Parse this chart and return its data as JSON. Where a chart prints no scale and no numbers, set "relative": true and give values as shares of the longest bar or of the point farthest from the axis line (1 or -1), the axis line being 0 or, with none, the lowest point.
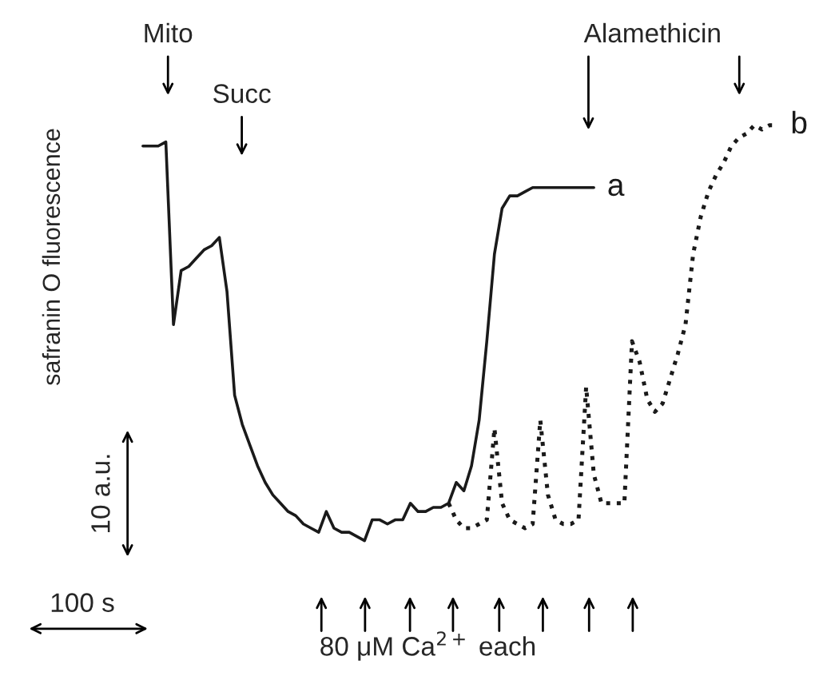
{
  "chart_data": {
    "type": "line",
    "relative": true,
    "ylabel": "safranin O fluorescence",
    "categories": [
      null,
      null,
      null,
      null,
      null,
      null,
      null,
      null,
      null,
      null,
      null,
      null,
      null,
      null,
      null,
      null,
      null,
      null,
      null,
      null,
      null,
      null,
      null,
      null,
      null,
      null,
      null,
      null,
      null,
      null,
      null,
      null,
      null,
      null,
      null,
      null,
      null,
      null,
      null,
      null,
      null,
      null,
      null,
      null,
      null,
      null,
      null,
      null,
      null,
      null,
      null,
      null,
      null,
      null,
      null,
      null,
      null,
      null,
      null,
      null,
      null,
      null,
      null,
      null,
      null,
      null,
      null,
      null,
      null,
      null,
      null,
      null,
      null,
      null,
      null,
      null,
      null,
      null,
      null,
      null,
      null,
      null,
      null,
      null
    ],
    "series": [
      {
        "name": "a",
        "color": "#1a1a1a",
        "line_style": "solid",
        "values": [
          0.95,
          0.95,
          0.95,
          0.96,
          0.52,
          0.65,
          0.66,
          0.68,
          0.7,
          0.71,
          0.73,
          0.6,
          0.35,
          0.28,
          0.23,
          0.18,
          0.14,
          0.11,
          0.09,
          0.07,
          0.06,
          0.04,
          0.03,
          0.02,
          0.07,
          0.03,
          0.02,
          0.02,
          0.01,
          0,
          0.05,
          0.05,
          0.04,
          0.05,
          0.05,
          0.09,
          0.07,
          0.07,
          0.08,
          0.08,
          0.09,
          0.14,
          0.12,
          0.18,
          0.29,
          0.48,
          0.69,
          0.8,
          0.83,
          0.83,
          0.84,
          0.85,
          0.85,
          0.85,
          0.85,
          0.85,
          0.85,
          0.85,
          0.85,
          0.85,
          null,
          null,
          null,
          null,
          null,
          null,
          null,
          null,
          null,
          null,
          null,
          null,
          null,
          null,
          null,
          null,
          null,
          null,
          null,
          null,
          null,
          null,
          null,
          null
        ]
      },
      {
        "name": "b",
        "color": "#1a1a1a",
        "line_style": "dotted",
        "values": [
          null,
          null,
          null,
          null,
          null,
          null,
          null,
          null,
          null,
          null,
          null,
          null,
          null,
          null,
          null,
          null,
          null,
          null,
          null,
          null,
          null,
          null,
          null,
          null,
          null,
          null,
          null,
          null,
          null,
          null,
          null,
          null,
          null,
          null,
          null,
          null,
          null,
          null,
          null,
          null,
          0.09,
          0.05,
          0.03,
          0.03,
          0.04,
          0.05,
          0.27,
          0.09,
          0.05,
          0.04,
          0.03,
          0.04,
          0.29,
          0.11,
          0.05,
          0.04,
          0.04,
          0.05,
          0.37,
          0.16,
          0.09,
          0.09,
          0.09,
          0.09,
          0.48,
          0.43,
          0.34,
          0.31,
          0.33,
          0.39,
          0.45,
          0.52,
          0.69,
          0.78,
          0.84,
          0.88,
          0.91,
          0.95,
          0.97,
          0.98,
          1.0,
          0.99,
          1.0,
          1.0
        ]
      }
    ],
    "annotations": [
      "Mito",
      "Succ",
      "Alamethicin",
      "80 μM Ca$^{2+}$ each",
      "10 a.u.",
      "100 s"
    ]
  }
}
